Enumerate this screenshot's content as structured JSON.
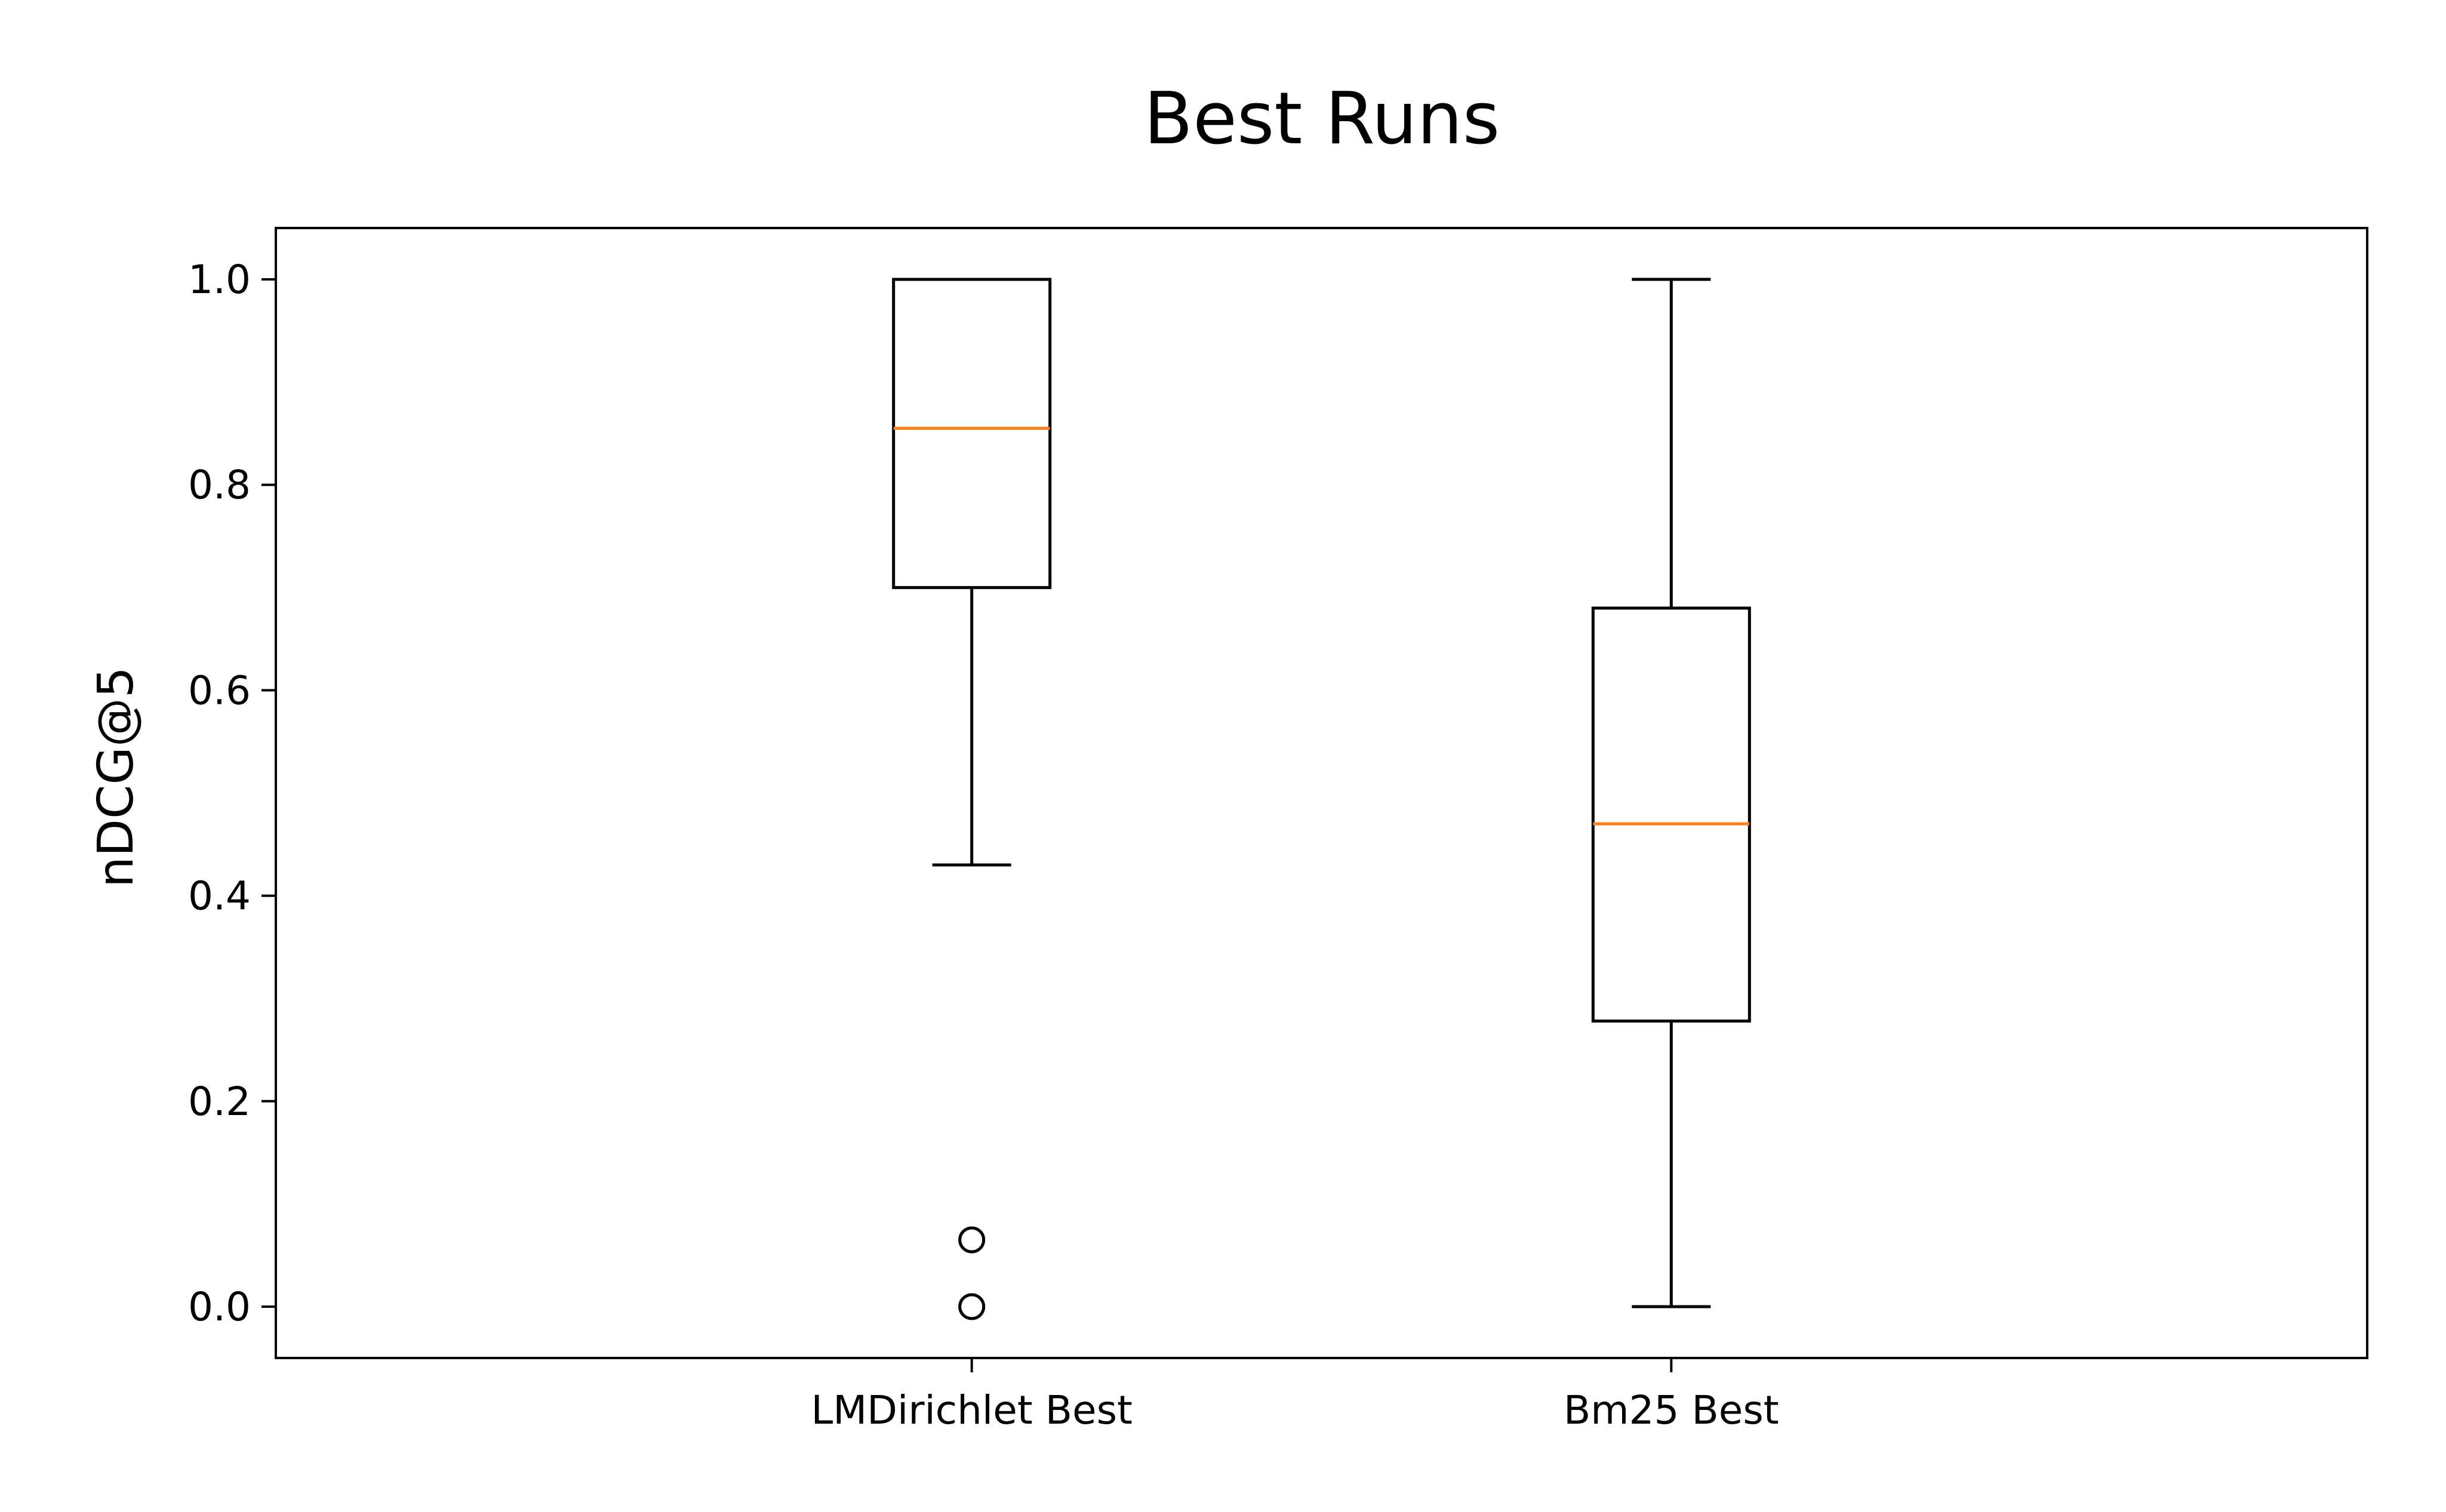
{
  "chart_data": {
    "type": "boxplot",
    "title": "Best Runs",
    "xlabel": "",
    "ylabel": "nDCG@5",
    "ylim": [
      -0.05,
      1.05
    ],
    "yticks": [
      "0.0",
      "0.2",
      "0.4",
      "0.6",
      "0.8",
      "1.0"
    ],
    "grid": false,
    "colors": {
      "box": "#000000",
      "median": "#ff7f0e",
      "axes": "#000000"
    },
    "categories": [
      "LMDirichlet Best",
      "Bm25 Best"
    ],
    "series": [
      {
        "category": "LMDirichlet Best",
        "whisker_low": 0.43,
        "q1": 0.7,
        "median": 0.855,
        "q3": 1.0,
        "whisker_high": 1.0,
        "outliers": [
          0.065,
          0.0
        ]
      },
      {
        "category": "Bm25 Best",
        "whisker_low": 0.0,
        "q1": 0.278,
        "median": 0.47,
        "q3": 0.68,
        "whisker_high": 1.0,
        "outliers": []
      }
    ]
  }
}
